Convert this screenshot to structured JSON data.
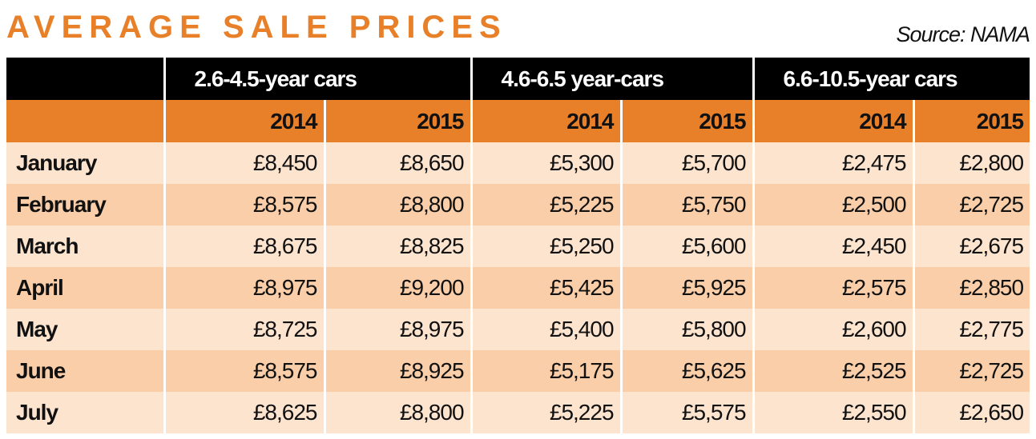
{
  "title": "AVERAGE SALE PRICES",
  "source": "Source: NAMA",
  "table": {
    "groups": [
      "2.6-4.5-year cars",
      "4.6-6.5 year-cars",
      "6.6-10.5-year cars"
    ],
    "subheaders": [
      "2014",
      "2015",
      "2014",
      "2015",
      "2014",
      "2015"
    ],
    "rows": [
      {
        "label": "January",
        "values": [
          "£8,450",
          "£8,650",
          "£5,300",
          "£5,700",
          "£2,475",
          "£2,800"
        ]
      },
      {
        "label": "February",
        "values": [
          "£8,575",
          "£8,800",
          "£5,225",
          "£5,750",
          "£2,500",
          "£2,725"
        ]
      },
      {
        "label": "March",
        "values": [
          "£8,675",
          "£8,825",
          "£5,250",
          "£5,600",
          "£2,450",
          "£2,675"
        ]
      },
      {
        "label": "April",
        "values": [
          "£8,975",
          "£9,200",
          "£5,425",
          "£5,925",
          "£2,575",
          "£2,850"
        ]
      },
      {
        "label": "May",
        "values": [
          "£8,725",
          "£8,975",
          "£5,400",
          "£5,800",
          "£2,600",
          "£2,775"
        ]
      },
      {
        "label": "June",
        "values": [
          "£8,575",
          "£8,925",
          "£5,175",
          "£5,625",
          "£2,525",
          "£2,725"
        ]
      },
      {
        "label": "July",
        "values": [
          "£8,625",
          "£8,800",
          "£5,225",
          "£5,575",
          "£2,550",
          "£2,650"
        ]
      }
    ]
  }
}
